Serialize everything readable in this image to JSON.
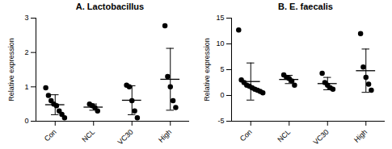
{
  "chart_data": [
    {
      "type": "scatter",
      "title": "A. Lactobacillus",
      "y_label": "Relative expression",
      "categories": [
        "Con",
        "NCL",
        "VC30",
        "High"
      ],
      "values": [
        [
          0.97,
          0.75,
          0.6,
          0.5,
          0.45,
          0.3,
          0.2,
          0.1
        ],
        [
          0.5,
          0.45,
          0.4,
          0.3
        ],
        [
          1.05,
          1.0,
          0.6,
          0.3,
          0.1
        ],
        [
          2.78,
          1.3,
          1.0,
          0.6,
          0.4
        ]
      ],
      "means": [
        0.48,
        0.41,
        0.61,
        1.22
      ],
      "errors": [
        0.29,
        0.09,
        0.42,
        0.9
      ],
      "ylim": [
        0,
        3
      ],
      "yticks": [
        0,
        1,
        2,
        3
      ],
      "color": "#000000",
      "marker": "circle",
      "grid": false
    },
    {
      "type": "scatter",
      "title": "B. E. faecalis",
      "y_label": "Relative expression",
      "categories": [
        "Con",
        "NCL",
        "VC30",
        "High"
      ],
      "values": [
        [
          12.7,
          3,
          2.5,
          2,
          1.8,
          1.5,
          1.2,
          1,
          0.8,
          0.5
        ],
        [
          4,
          3.5,
          3.3,
          2.8,
          2
        ],
        [
          4.3,
          2.5,
          2,
          1.5,
          1.2
        ],
        [
          12,
          5.5,
          3.5,
          2.2,
          1
        ]
      ],
      "means": [
        2.7,
        3.1,
        2.3,
        4.8
      ],
      "errors": [
        3.6,
        0.8,
        1.2,
        4.2
      ],
      "ylim": [
        -5,
        15
      ],
      "yticks": [
        -5,
        0,
        5,
        10,
        15
      ],
      "color": "#000000",
      "marker": "circle",
      "grid": false
    }
  ]
}
